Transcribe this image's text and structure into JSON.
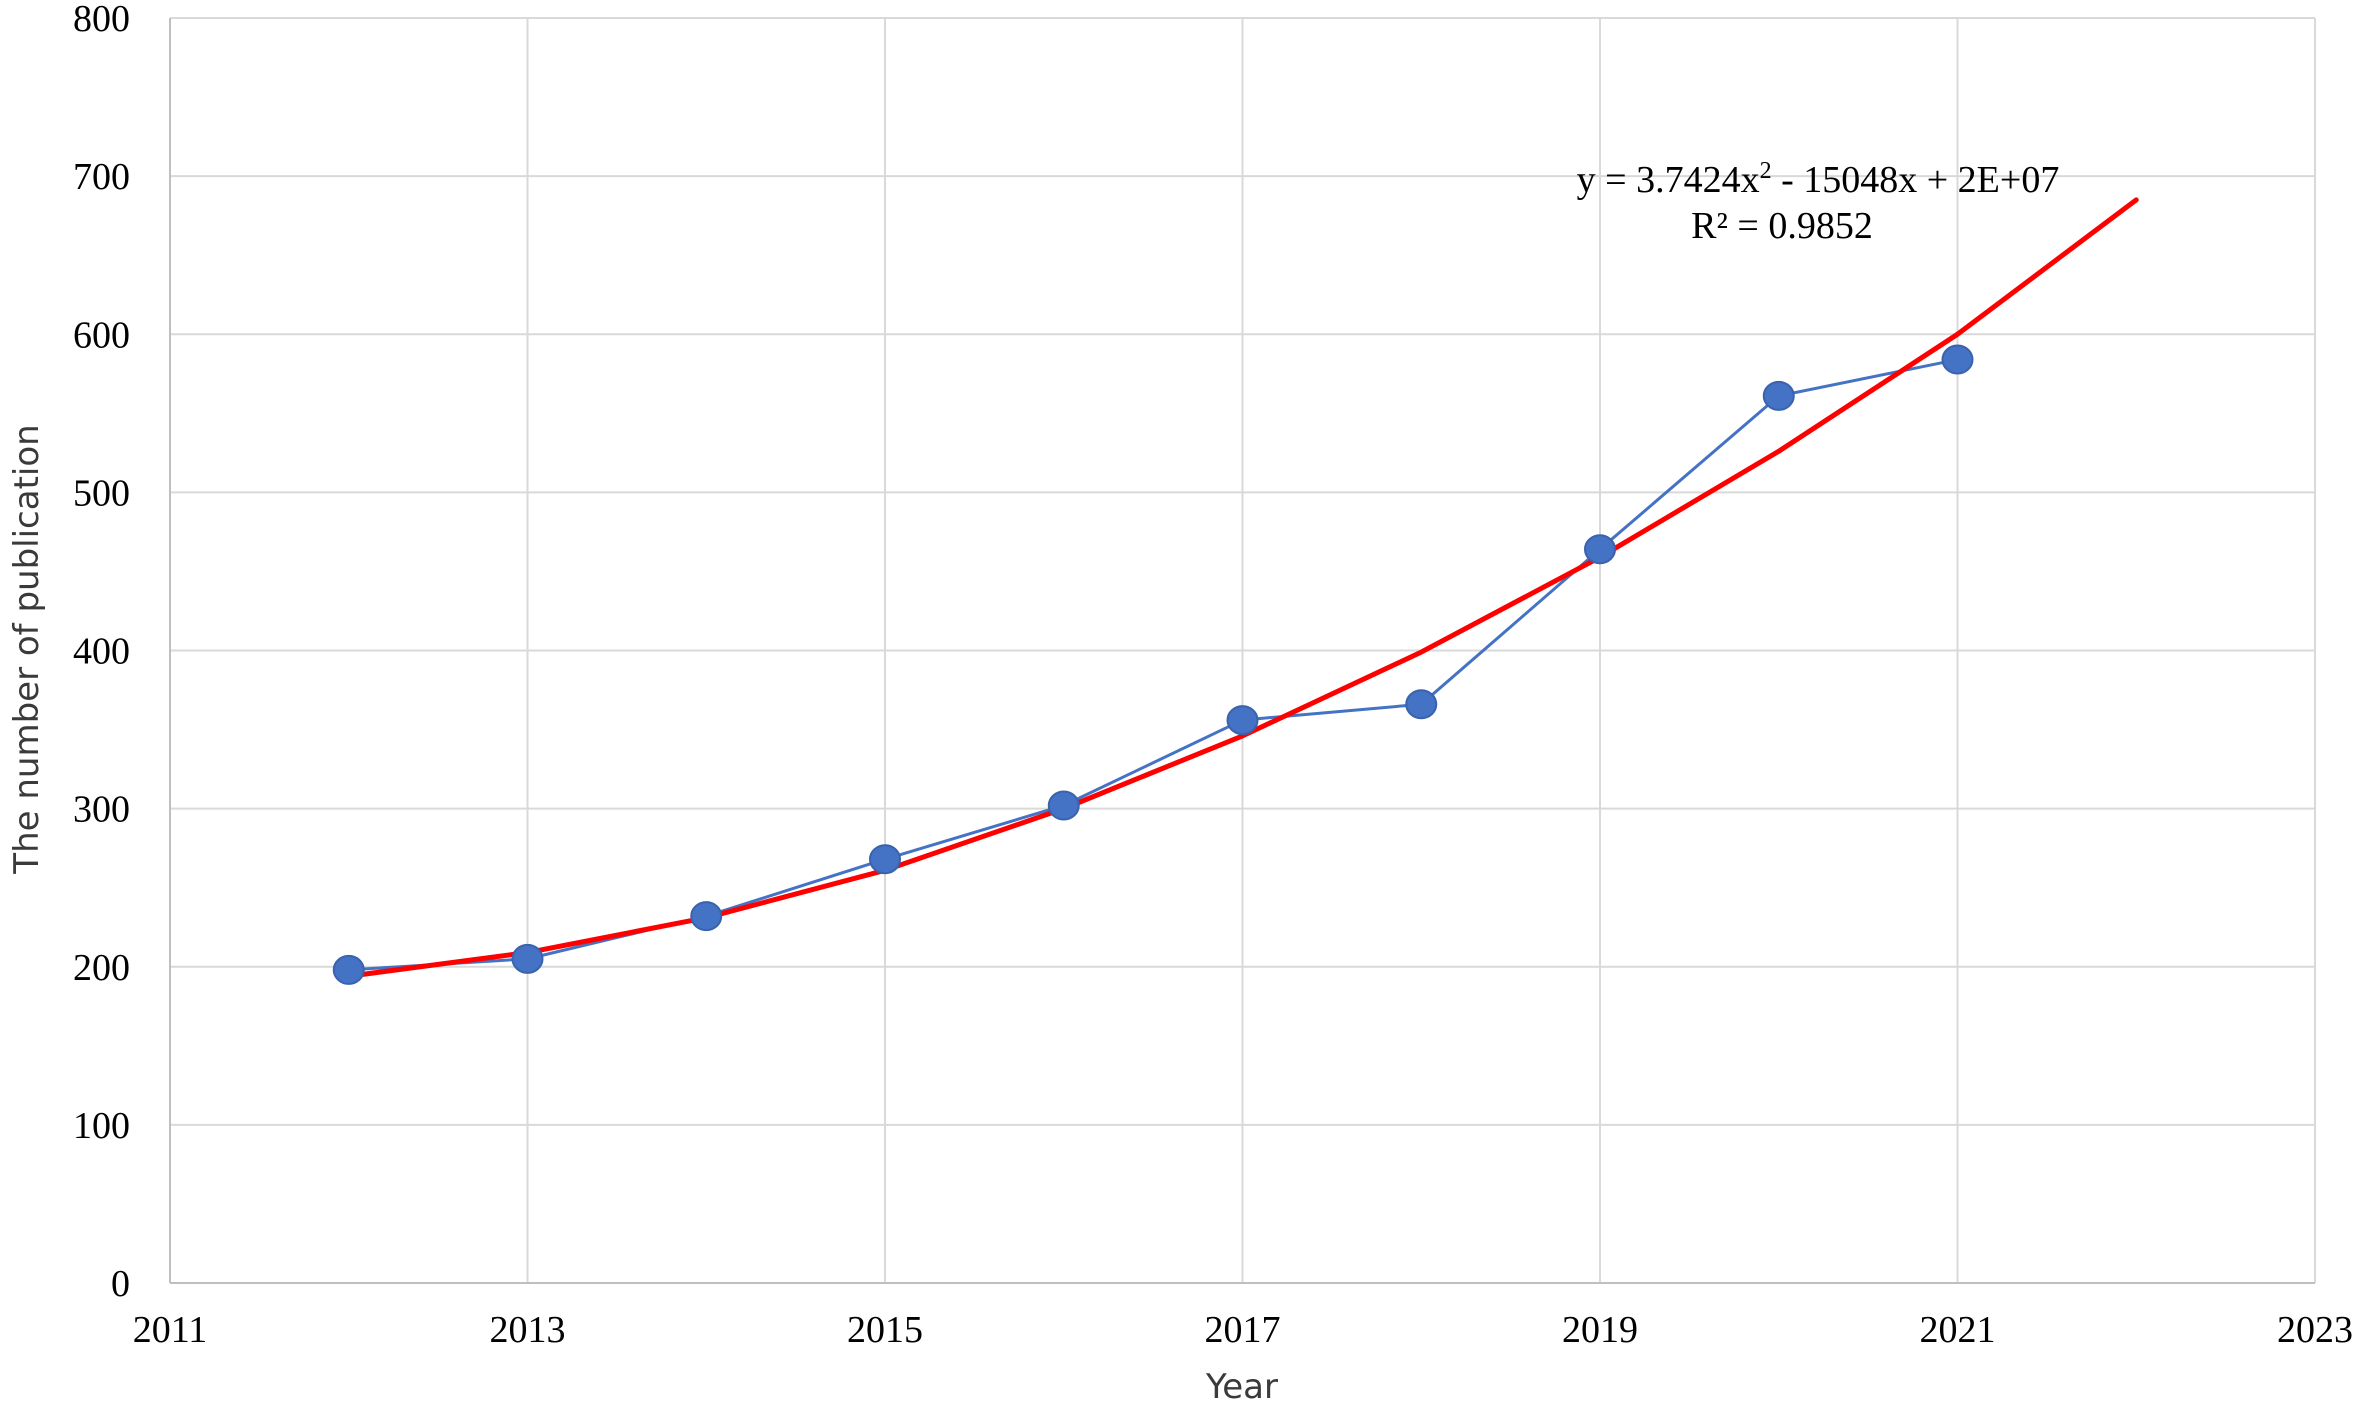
{
  "chart_data": {
    "type": "scatter",
    "xlabel": "Year",
    "ylabel": "The number of publication",
    "xlim": [
      2011,
      2023
    ],
    "ylim": [
      0,
      800
    ],
    "x_ticks": [
      2011,
      2013,
      2015,
      2017,
      2019,
      2021,
      2023
    ],
    "y_ticks": [
      0,
      100,
      200,
      300,
      400,
      500,
      600,
      700,
      800
    ],
    "grid": true,
    "legend": "none",
    "series": [
      {
        "style": "scatter-with-lines",
        "color": "#4472c4",
        "x": [
          2012,
          2013,
          2014,
          2015,
          2016,
          2017,
          2018,
          2019,
          2020,
          2021
        ],
        "y": [
          198,
          205,
          232,
          268,
          302,
          356,
          366,
          464,
          561,
          584
        ]
      }
    ],
    "trendline": {
      "type": "polynomial",
      "order": 2,
      "color": "#ff0000",
      "x_range": [
        2012,
        2022
      ],
      "fit_points": {
        "x": [
          2012,
          2013,
          2014,
          2015,
          2016,
          2017,
          2018,
          2019,
          2020,
          2021,
          2022
        ],
        "y": [
          194,
          209,
          231,
          261,
          300,
          346,
          399,
          459,
          526,
          600,
          685
        ]
      }
    },
    "annotations": {
      "equation_main": "y = 3.7424x",
      "equation_sup": "2",
      "equation_rest": " - 15048x + 2E+07",
      "r_squared": "R² = 0.9852"
    }
  }
}
